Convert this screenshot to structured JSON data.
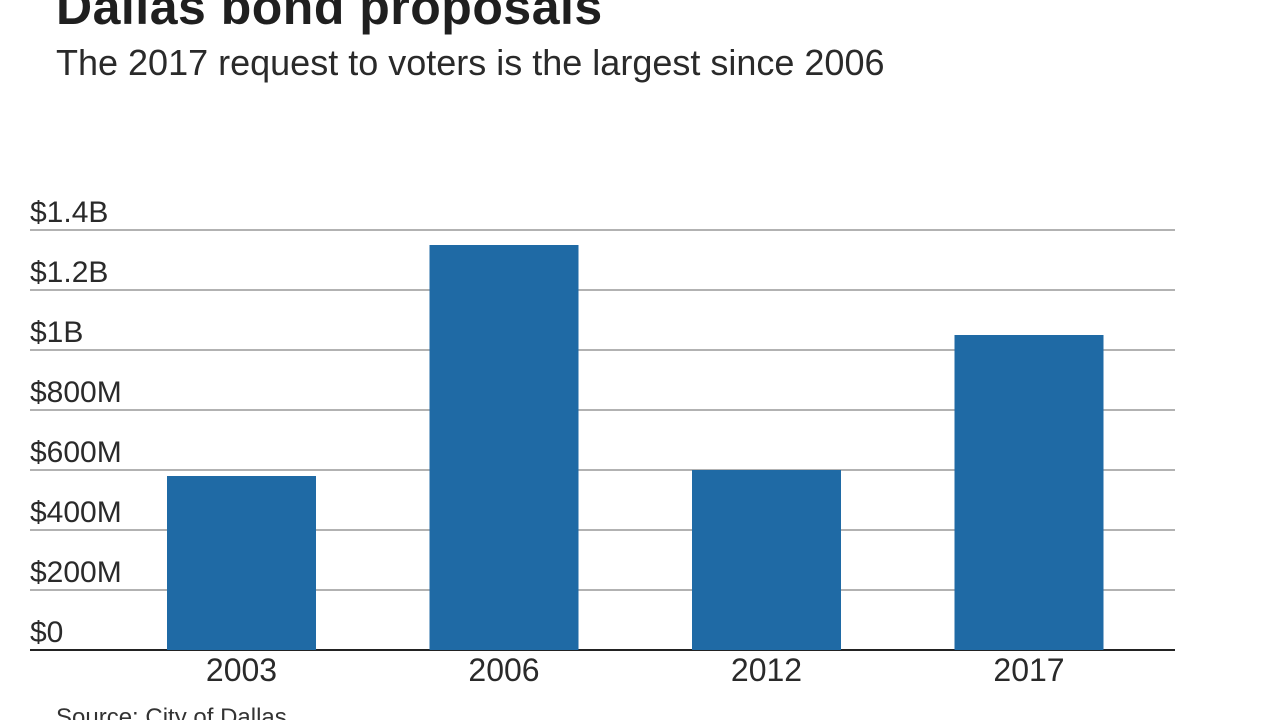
{
  "title": "Dallas bond proposals",
  "subtitle": "The 2017 request to voters is the largest since 2006",
  "source": "Source: City of Dallas",
  "colors": {
    "bar": "#1f6aa5",
    "grid": "#999999",
    "grid_dark": "#222222",
    "text": "#2a2a2a"
  },
  "chart_data": {
    "type": "bar",
    "title": "Dallas bond proposals",
    "subtitle": "The 2017 request to voters is the largest since 2006",
    "categories": [
      "2003",
      "2006",
      "2012",
      "2017"
    ],
    "values": [
      580000000,
      1350000000,
      600000000,
      1050000000
    ],
    "ylim": [
      0,
      1400000000
    ],
    "yticks": [
      0,
      200000000,
      400000000,
      600000000,
      800000000,
      1000000000,
      1200000000,
      1400000000
    ],
    "ytick_labels": [
      "$0",
      "$200M",
      "$400M",
      "$600M",
      "$800M",
      "$1B",
      "$1.2B",
      "$1.4B"
    ],
    "xlabel": "",
    "ylabel": "",
    "grid": true,
    "legend": "none"
  }
}
